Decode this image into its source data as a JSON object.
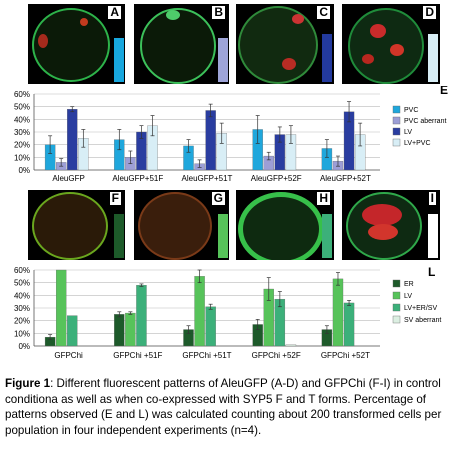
{
  "panels_top": [
    "A",
    "B",
    "C",
    "D"
  ],
  "panels_mid": [
    "F",
    "G",
    "H",
    "I"
  ],
  "chart_data": [
    {
      "type": "bar",
      "panel_label": "E",
      "categories": [
        "AleuGFP",
        "AleuGFP+51F",
        "AleuGFP+51T",
        "AleuGFP+52F",
        "AleuGFP+52T"
      ],
      "yticks": [
        "0%",
        "10%",
        "20%",
        "30%",
        "40%",
        "50%",
        "60%"
      ],
      "ylim": [
        0,
        60
      ],
      "legend_position": "right",
      "series": [
        {
          "name": "PVC",
          "color": "#1fa7dc",
          "values": [
            20,
            24,
            19,
            32,
            17
          ],
          "errors": [
            7,
            8,
            5,
            11,
            7
          ]
        },
        {
          "name": "PVC aberrant",
          "color": "#9c9ed6",
          "values": [
            6,
            10,
            5,
            11,
            7
          ],
          "errors": [
            3,
            5,
            3,
            3,
            4
          ]
        },
        {
          "name": "LV",
          "color": "#2a3da0",
          "values": [
            48,
            30,
            47,
            28,
            46
          ],
          "errors": [
            2,
            5,
            5,
            6,
            8
          ]
        },
        {
          "name": "LV+PVC",
          "color": "#d8eef6",
          "values": [
            25,
            35,
            29,
            28,
            28
          ],
          "errors": [
            7,
            8,
            8,
            7,
            9
          ]
        }
      ]
    },
    {
      "type": "bar",
      "panel_label": "L",
      "categories": [
        "GFPChi",
        "GFPChi +51F",
        "GFPChi +51T",
        "GFPChi +52F",
        "GFPChi +52T"
      ],
      "yticks": [
        "0%",
        "10%",
        "20%",
        "30%",
        "40%",
        "50%",
        "60%"
      ],
      "ylim": [
        0,
        60
      ],
      "legend_position": "right",
      "series": [
        {
          "name": "ER",
          "color": "#1d5a2a",
          "values": [
            7,
            25,
            13,
            17,
            13
          ],
          "errors": [
            2,
            2,
            3,
            4,
            3
          ]
        },
        {
          "name": "LV",
          "color": "#57c35a",
          "values": [
            60,
            26,
            55,
            45,
            53
          ],
          "errors": [
            0,
            1,
            5,
            9,
            5
          ]
        },
        {
          "name": "LV+ER/SV",
          "color": "#3cb07a",
          "values": [
            24,
            48,
            31,
            37,
            34
          ],
          "errors": [
            0,
            1,
            2,
            6,
            2
          ]
        },
        {
          "name": "SV aberrant",
          "color": "#dcefe2",
          "values": [
            0,
            0,
            0,
            1,
            0
          ],
          "errors": [
            0,
            0,
            0,
            0,
            0
          ]
        }
      ]
    }
  ],
  "caption": {
    "bold": "Figure 1",
    "text": ": Different fluorescent patterns of AleuGFP (A-D) and GFPChi (F-I) in control conditiona as well as when co-expressed with SYP5 F and T forms. Percentage of patterns observed (E and L) was calculated counting about 200 transformed cells per population in four independent experiments (n=4)."
  }
}
